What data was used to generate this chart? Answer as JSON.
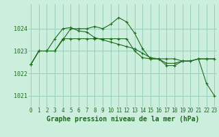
{
  "background_color": "#cceedd",
  "grid_color": "#99ccbb",
  "line_color": "#1a6b1a",
  "marker_color": "#1a6b1a",
  "xlabel": "Graphe pression niveau de la mer (hPa)",
  "xlabel_fontsize": 7,
  "ylabel_fontsize": 6,
  "tick_fontsize": 5.5,
  "ylim": [
    1020.5,
    1025.1
  ],
  "yticks": [
    1021,
    1022,
    1023,
    1024
  ],
  "xticks": [
    0,
    1,
    2,
    3,
    4,
    5,
    6,
    7,
    8,
    9,
    10,
    11,
    12,
    13,
    14,
    15,
    16,
    17,
    18,
    19,
    20,
    21,
    22,
    23
  ],
  "series": [
    [
      1022.4,
      1023.0,
      1023.0,
      1023.55,
      1024.0,
      1024.05,
      1023.9,
      1023.85,
      1023.6,
      1023.5,
      1023.4,
      1023.3,
      1023.2,
      1023.1,
      1022.9,
      1022.7,
      1022.65,
      1022.65,
      1022.65,
      1022.55,
      1022.55,
      1022.65,
      1022.65,
      1022.65
    ],
    [
      1022.4,
      1023.0,
      1023.0,
      1023.0,
      1023.55,
      1023.55,
      1023.55,
      1023.55,
      1023.55,
      1023.55,
      1023.55,
      1023.55,
      1023.55,
      1023.0,
      1022.7,
      1022.65,
      1022.65,
      1022.45,
      1022.45,
      1022.55,
      1022.55,
      1022.65,
      1022.65,
      1022.65
    ],
    [
      1022.4,
      1023.0,
      1023.0,
      1023.0,
      1023.5,
      1024.0,
      1024.0,
      1024.0,
      1024.1,
      1024.0,
      1024.2,
      1024.5,
      1024.3,
      1023.8,
      1023.1,
      1022.65,
      1022.65,
      1022.35,
      1022.35,
      1022.55,
      1022.55,
      1022.65,
      1021.55,
      1021.0
    ]
  ]
}
